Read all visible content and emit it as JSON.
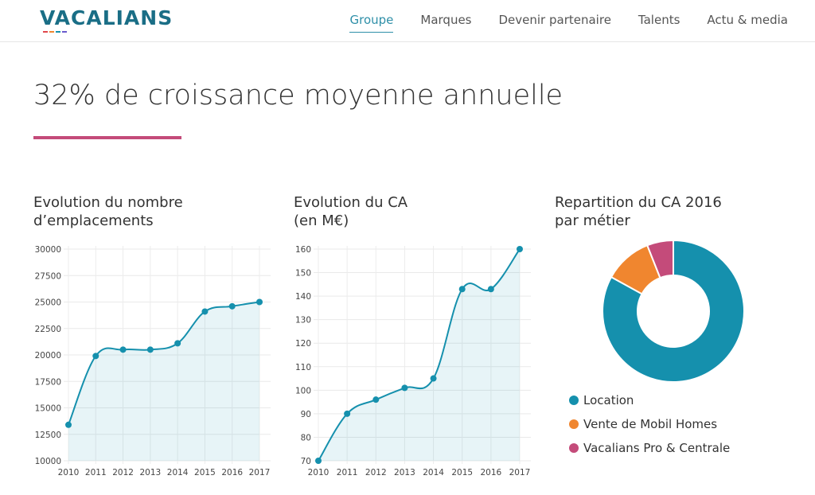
{
  "header": {
    "logo_text": "VACALIANS",
    "nav": [
      {
        "label": "Groupe",
        "active": true
      },
      {
        "label": "Marques"
      },
      {
        "label": "Devenir partenaire"
      },
      {
        "label": "Talents"
      },
      {
        "label": "Actu & media"
      }
    ]
  },
  "main": {
    "headline": "32% de croissance moyenne annuelle"
  },
  "colors": {
    "accent_teal": "#1590ad",
    "accent_orange": "#f0862f",
    "accent_pink": "#c44b7a"
  },
  "chart_data": [
    {
      "type": "area",
      "title_line1": "Evolution du nombre",
      "title_line2": "d’emplacements",
      "x": [
        "2010",
        "2011",
        "2012",
        "2013",
        "2014",
        "2015",
        "2016",
        "2017"
      ],
      "values": [
        13400,
        19900,
        20500,
        20500,
        21100,
        24100,
        24600,
        25000
      ],
      "yticks": [
        "30000",
        "27500",
        "25000",
        "22500",
        "20000",
        "17500",
        "15000",
        "12500",
        "10000"
      ],
      "ylim": [
        10000,
        30000
      ],
      "grid": true,
      "color": "#1590ad"
    },
    {
      "type": "area",
      "title_line1": "Evolution du CA",
      "title_line2": "(en M€)",
      "x": [
        "2010",
        "2011",
        "2012",
        "2013",
        "2014",
        "2015",
        "2016",
        "2017"
      ],
      "values": [
        70,
        90,
        96,
        101,
        105,
        143,
        143,
        160
      ],
      "yticks": [
        "160",
        "150",
        "140",
        "130",
        "120",
        "110",
        "100",
        "90",
        "80",
        "70"
      ],
      "ylim": [
        70,
        160
      ],
      "grid": true,
      "color": "#1590ad"
    },
    {
      "type": "pie",
      "title_line1": "Repartition du CA 2016",
      "title_line2": "par métier",
      "labels": [
        "Location",
        "Vente de Mobil Homes",
        "Vacalians Pro & Centrale"
      ],
      "values": [
        83,
        11,
        6
      ],
      "colors": [
        "#1590ad",
        "#f0862f",
        "#c44b7a"
      ],
      "legend_position": "bottom"
    }
  ]
}
